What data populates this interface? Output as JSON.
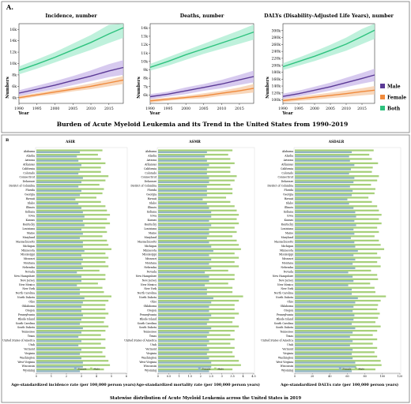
{
  "figure": {
    "panelA_label": "A.",
    "panelA_caption": "Burden of Acute Myeloid Leukemia and its Trend in the United States from 1990-2019",
    "panelB_label": "B",
    "panelB_caption": "Statewise distribution of Acute Myeloid Leukemia across the United States in 2019"
  },
  "colors": {
    "male": "#5b3a96",
    "female": "#f08a3c",
    "both": "#2ec27e",
    "male_band": "#c9b8ea",
    "female_band": "#f6c9a4",
    "both_band": "#a9ecd0",
    "bar_female": "#8fb3c2",
    "bar_male": "#a7d07a"
  },
  "chart_data": [
    {
      "type": "line",
      "title": "Incidence, number",
      "xlabel": "Year",
      "ylabel": "Numbers",
      "xlim": [
        1990,
        2019
      ],
      "ylim": [
        3000,
        17000
      ],
      "xticks": [
        1990,
        1995,
        2000,
        2005,
        2010,
        2015
      ],
      "yticks": [
        4000,
        6000,
        8000,
        10000,
        12000,
        14000,
        16000
      ],
      "ytick_labels": [
        "4k",
        "6k",
        "8k",
        "10k",
        "12k",
        "14k",
        "16k"
      ],
      "x": [
        1990,
        1995,
        2000,
        2005,
        2010,
        2015,
        2019
      ],
      "series": [
        {
          "name": "Male",
          "values": [
            4800,
            5500,
            6200,
            7000,
            7800,
            8700,
            9300
          ],
          "lower": [
            4300,
            4900,
            5500,
            6200,
            6900,
            7600,
            8000
          ],
          "upper": [
            5300,
            6100,
            6900,
            7800,
            8800,
            9900,
            10600
          ]
        },
        {
          "name": "Female",
          "values": [
            4000,
            4500,
            5000,
            5500,
            6000,
            6600,
            7100
          ],
          "lower": [
            3700,
            4200,
            4600,
            5100,
            5500,
            6000,
            6400
          ],
          "upper": [
            4300,
            4800,
            5400,
            5900,
            6500,
            7200,
            7800
          ]
        },
        {
          "name": "Both",
          "values": [
            8800,
            9900,
            11100,
            12400,
            13700,
            15200,
            16300
          ],
          "lower": [
            8100,
            9100,
            10200,
            11300,
            12400,
            13600,
            14500
          ],
          "upper": [
            9500,
            10700,
            12000,
            13500,
            15000,
            16800,
            17000
          ]
        }
      ]
    },
    {
      "type": "line",
      "title": "Deaths, number",
      "xlabel": "Year",
      "ylabel": "Numbers",
      "xlim": [
        1990,
        2019
      ],
      "ylim": [
        5000,
        14500
      ],
      "xticks": [
        1990,
        1995,
        2000,
        2005,
        2010,
        2015
      ],
      "yticks": [
        6000,
        7000,
        8000,
        9000,
        10000,
        11000,
        12000,
        13000,
        14000
      ],
      "ytick_labels": [
        "6k",
        "7k",
        "8k",
        "9k",
        "10k",
        "11k",
        "12k",
        "13k",
        "14k"
      ],
      "x": [
        1990,
        1995,
        2000,
        2005,
        2010,
        2015,
        2019
      ],
      "series": [
        {
          "name": "Male",
          "values": [
            5800,
            6100,
            6500,
            6900,
            7300,
            7800,
            8200
          ],
          "lower": [
            5500,
            5800,
            6100,
            6500,
            6800,
            7200,
            7500
          ],
          "upper": [
            6100,
            6400,
            6900,
            7300,
            7800,
            8400,
            8900
          ]
        },
        {
          "name": "Female",
          "values": [
            5300,
            5500,
            5700,
            5900,
            6200,
            6500,
            6800
          ],
          "lower": [
            5100,
            5300,
            5500,
            5600,
            5900,
            6100,
            6300
          ],
          "upper": [
            5500,
            5700,
            5900,
            6200,
            6500,
            6900,
            7300
          ]
        },
        {
          "name": "Both",
          "values": [
            9300,
            10000,
            10800,
            11500,
            12200,
            12900,
            13500
          ],
          "lower": [
            8900,
            9500,
            10200,
            10900,
            11500,
            12100,
            12600
          ],
          "upper": [
            9700,
            10500,
            11300,
            12100,
            12900,
            13700,
            14400
          ]
        }
      ]
    },
    {
      "type": "line",
      "title": "DALYs (Disability-Adjusted Life Years), number",
      "xlabel": "Year",
      "ylabel": "Numbers",
      "xlim": [
        1990,
        2019
      ],
      "ylim": [
        90000,
        320000
      ],
      "xticks": [
        1990,
        1995,
        2000,
        2005,
        2010,
        2015
      ],
      "yticks": [
        100000,
        120000,
        140000,
        160000,
        180000,
        200000,
        220000,
        240000,
        260000,
        280000,
        300000
      ],
      "ytick_labels": [
        "100k",
        "120k",
        "140k",
        "160k",
        "180k",
        "200k",
        "220k",
        "240k",
        "260k",
        "280k",
        "300k"
      ],
      "x": [
        1990,
        1995,
        2000,
        2005,
        2010,
        2015,
        2019
      ],
      "series": [
        {
          "name": "Male",
          "values": [
            110000,
            118000,
            128000,
            138000,
            150000,
            162000,
            172000
          ],
          "lower": [
            103000,
            110000,
            118000,
            127000,
            137000,
            147000,
            154000
          ],
          "upper": [
            118000,
            127000,
            138000,
            150000,
            164000,
            178000,
            190000
          ]
        },
        {
          "name": "Female",
          "values": [
            98000,
            103000,
            108000,
            113000,
            118000,
            124000,
            128000
          ],
          "lower": [
            93000,
            97000,
            101000,
            105000,
            109000,
            113000,
            116000
          ],
          "upper": [
            103000,
            109000,
            115000,
            121000,
            127000,
            134000,
            140000
          ]
        },
        {
          "name": "Both",
          "values": [
            196000,
            211000,
            226000,
            243000,
            261000,
            283000,
            301000
          ],
          "lower": [
            186000,
            199000,
            212000,
            227000,
            242000,
            261000,
            276000
          ],
          "upper": [
            206000,
            222000,
            240000,
            259000,
            280000,
            305000,
            320000
          ]
        }
      ]
    },
    {
      "type": "bar",
      "orientation": "horizontal",
      "title": "ASIR",
      "xlabel": "Age-standardized incidence rate (per 100,000 person years)",
      "xlim": [
        0,
        6
      ],
      "xticks": [
        0,
        1,
        2,
        3,
        4,
        5,
        6
      ],
      "legend": [
        "Female",
        "Male"
      ],
      "categories": [
        "Alabama",
        "Alaska",
        "Arizona",
        "Arkansas",
        "California",
        "Colorado",
        "Connecticut",
        "Delaware",
        "District of Columbia",
        "Florida",
        "Georgia",
        "Hawaii",
        "Idaho",
        "Illinois",
        "Indiana",
        "Iowa",
        "Kansas",
        "Kentucky",
        "Louisiana",
        "Maine",
        "Maryland",
        "Massachusetts",
        "Michigan",
        "Minnesota",
        "Mississippi",
        "Missouri",
        "Montana",
        "Nebraska",
        "Nevada",
        "New Hampshire",
        "New Jersey",
        "New Mexico",
        "New York",
        "North Carolina",
        "North Dakota",
        "Ohio",
        "Oklahoma",
        "Oregon",
        "Pennsylvania",
        "Rhode Island",
        "South Carolina",
        "South Dakota",
        "Tennessee",
        "Texas",
        "United States of America",
        "Utah",
        "Vermont",
        "Virginia",
        "Washington",
        "West Virginia",
        "Wisconsin",
        "Wyoming"
      ],
      "series": [
        {
          "name": "Female",
          "values": [
            2.9,
            2.7,
            2.8,
            3.0,
            2.9,
            2.8,
            3.1,
            3.0,
            2.8,
            3.0,
            2.9,
            2.6,
            2.8,
            3.0,
            3.1,
            3.2,
            3.1,
            3.2,
            3.0,
            3.1,
            2.9,
            3.1,
            3.1,
            3.2,
            3.0,
            3.1,
            3.0,
            3.1,
            2.7,
            3.0,
            3.0,
            2.7,
            2.9,
            2.9,
            3.2,
            3.1,
            3.0,
            3.0,
            3.1,
            3.0,
            2.9,
            3.1,
            3.0,
            2.8,
            3.0,
            2.8,
            3.0,
            2.9,
            3.0,
            3.1,
            3.1,
            2.9
          ]
        },
        {
          "name": "Male",
          "values": [
            4.4,
            4.1,
            4.3,
            4.6,
            4.3,
            4.3,
            4.8,
            4.6,
            4.2,
            4.5,
            4.4,
            4.0,
            4.3,
            4.6,
            4.7,
            4.9,
            4.7,
            4.9,
            4.6,
            4.7,
            4.4,
            4.7,
            4.8,
            5.0,
            4.6,
            4.8,
            4.6,
            4.8,
            4.2,
            4.6,
            4.6,
            4.1,
            4.4,
            4.5,
            5.0,
            4.8,
            4.6,
            4.6,
            4.8,
            4.6,
            4.5,
            4.8,
            4.6,
            4.3,
            4.6,
            4.3,
            4.6,
            4.4,
            4.6,
            4.8,
            4.9,
            4.5
          ]
        }
      ]
    },
    {
      "type": "bar",
      "orientation": "horizontal",
      "title": "ASMR",
      "xlabel": "Age-standardized mortality rate (per 100,000 person years)",
      "xlim": [
        0,
        4.5
      ],
      "xticks": [
        0,
        0.5,
        1,
        1.5,
        2,
        2.5,
        3,
        3.5,
        4,
        4.5
      ],
      "legend": [
        "Female",
        "Male"
      ],
      "categories": [
        "Alabama",
        "Alaska",
        "Arizona",
        "Arkansas",
        "California",
        "Colorado",
        "Connecticut",
        "Delaware",
        "District of Columbia",
        "Florida",
        "Georgia",
        "Hawaii",
        "Idaho",
        "Illinois",
        "Indiana",
        "Iowa",
        "Kansas",
        "Kentucky",
        "Louisiana",
        "Maine",
        "Maryland",
        "Massachusetts",
        "Michigan",
        "Minnesota",
        "Mississippi",
        "Missouri",
        "Montana",
        "Nebraska",
        "Nevada",
        "New Hampshire",
        "New Jersey",
        "New Mexico",
        "New York",
        "North Carolina",
        "North Dakota",
        "Ohio",
        "Oklahoma",
        "Oregon",
        "Pennsylvania",
        "Rhode Island",
        "South Carolina",
        "South Dakota",
        "Tennessee",
        "Texas",
        "United States of America",
        "Utah",
        "Vermont",
        "Virginia",
        "Washington",
        "West Virginia",
        "Wisconsin",
        "Wyoming"
      ],
      "series": [
        {
          "name": "Female",
          "values": [
            2.3,
            2.2,
            2.3,
            2.4,
            2.3,
            2.3,
            2.4,
            2.4,
            2.3,
            2.3,
            2.3,
            2.1,
            2.3,
            2.4,
            2.5,
            2.5,
            2.4,
            2.5,
            2.4,
            2.4,
            2.3,
            2.4,
            2.5,
            2.6,
            2.4,
            2.5,
            2.4,
            2.5,
            2.2,
            2.4,
            2.4,
            2.2,
            2.3,
            2.3,
            2.6,
            2.5,
            2.4,
            2.4,
            2.5,
            2.4,
            2.3,
            2.5,
            2.4,
            2.3,
            2.4,
            2.3,
            2.4,
            2.3,
            2.4,
            2.5,
            2.5,
            2.4
          ]
        },
        {
          "name": "Male",
          "values": [
            3.5,
            3.3,
            3.4,
            3.6,
            3.4,
            3.4,
            3.7,
            3.6,
            3.4,
            3.5,
            3.5,
            3.2,
            3.4,
            3.6,
            3.7,
            3.8,
            3.7,
            3.8,
            3.6,
            3.7,
            3.5,
            3.7,
            3.8,
            3.9,
            3.6,
            3.8,
            3.6,
            3.8,
            3.3,
            3.6,
            3.6,
            3.3,
            3.5,
            3.5,
            4.0,
            3.8,
            3.6,
            3.6,
            3.8,
            3.6,
            3.5,
            3.8,
            3.6,
            3.4,
            3.6,
            3.4,
            3.6,
            3.5,
            3.6,
            3.8,
            3.9,
            3.5
          ]
        }
      ]
    },
    {
      "type": "bar",
      "orientation": "horizontal",
      "title": "ASDALR",
      "xlabel": "Age-standardized DALYs rate (per 100,000 person years)",
      "xlim": [
        0,
        120
      ],
      "xticks": [
        0,
        20,
        40,
        60,
        80,
        100,
        120
      ],
      "legend": [
        "Female",
        "Male"
      ],
      "categories": [
        "Alabama",
        "Alaska",
        "Arizona",
        "Arkansas",
        "California",
        "Colorado",
        "Connecticut",
        "Delaware",
        "District of Columbia",
        "Florida",
        "Georgia",
        "Hawaii",
        "Idaho",
        "Illinois",
        "Indiana",
        "Iowa",
        "Kansas",
        "Kentucky",
        "Louisiana",
        "Maine",
        "Maryland",
        "Massachusetts",
        "Michigan",
        "Minnesota",
        "Mississippi",
        "Missouri",
        "Montana",
        "Nebraska",
        "Nevada",
        "New Hampshire",
        "New Jersey",
        "New Mexico",
        "New York",
        "North Carolina",
        "North Dakota",
        "Ohio",
        "Oklahoma",
        "Oregon",
        "Pennsylvania",
        "Rhode Island",
        "South Carolina",
        "South Dakota",
        "Tennessee",
        "Texas",
        "United States of America",
        "Utah",
        "Vermont",
        "Virginia",
        "Washington",
        "West Virginia",
        "Wisconsin",
        "Wyoming"
      ],
      "series": [
        {
          "name": "Female",
          "values": [
            65,
            62,
            63,
            68,
            64,
            62,
            68,
            67,
            63,
            66,
            65,
            60,
            62,
            67,
            69,
            70,
            68,
            70,
            67,
            68,
            64,
            68,
            69,
            72,
            67,
            69,
            66,
            69,
            61,
            66,
            67,
            61,
            65,
            65,
            72,
            69,
            67,
            66,
            68,
            67,
            65,
            69,
            66,
            63,
            66,
            63,
            66,
            65,
            66,
            69,
            70,
            65
          ]
        },
        {
          "name": "Male",
          "values": [
            90,
            85,
            88,
            95,
            89,
            88,
            96,
            94,
            87,
            92,
            91,
            84,
            88,
            94,
            96,
            99,
            96,
            99,
            94,
            96,
            91,
            96,
            98,
            102,
            94,
            98,
            94,
            98,
            87,
            94,
            95,
            86,
            91,
            92,
            104,
            98,
            95,
            94,
            97,
            95,
            92,
            98,
            94,
            89,
            94,
            89,
            94,
            91,
            94,
            98,
            99,
            92
          ]
        }
      ]
    }
  ]
}
